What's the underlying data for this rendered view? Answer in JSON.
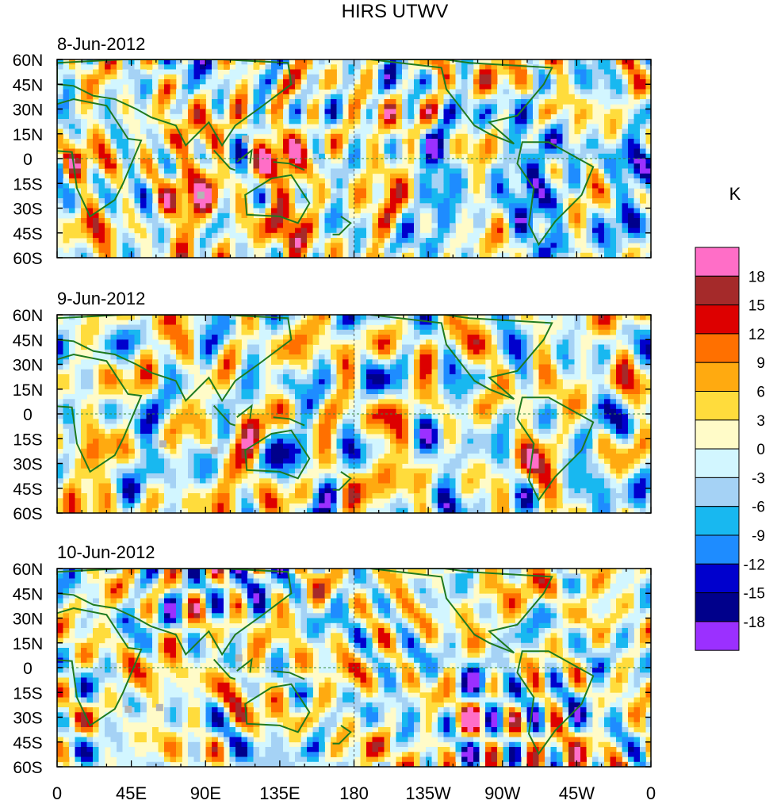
{
  "title": "HIRS UTWV",
  "panels": [
    {
      "label": "8-Jun-2012"
    },
    {
      "label": "9-Jun-2012"
    },
    {
      "label": "10-Jun-2012"
    }
  ],
  "lat_ticks": [
    "60N",
    "45N",
    "30N",
    "15N",
    "0",
    "15S",
    "30S",
    "45S",
    "60S"
  ],
  "lon_ticks": [
    "0",
    "45E",
    "90E",
    "135E",
    "180",
    "135W",
    "90W",
    "45W",
    "0"
  ],
  "colorbar": {
    "unit": "K",
    "levels": [
      "18",
      "15",
      "12",
      "9",
      "6",
      "3",
      "0",
      "-3",
      "-6",
      "-9",
      "-12",
      "-15",
      "-18"
    ],
    "colors": [
      "#ff6ec7",
      "#a52a2a",
      "#dd0000",
      "#ff7000",
      "#ffaa10",
      "#ffdc3c",
      "#fffbc8",
      "#d2f6ff",
      "#a5d2f5",
      "#18b8f0",
      "#1e8cff",
      "#0000cd",
      "#00008b",
      "#9b30ff"
    ]
  },
  "colors": {
    "coast": "#1f7a1f",
    "grid": "#3b8a3b",
    "missing": "#b4b4b4"
  }
}
